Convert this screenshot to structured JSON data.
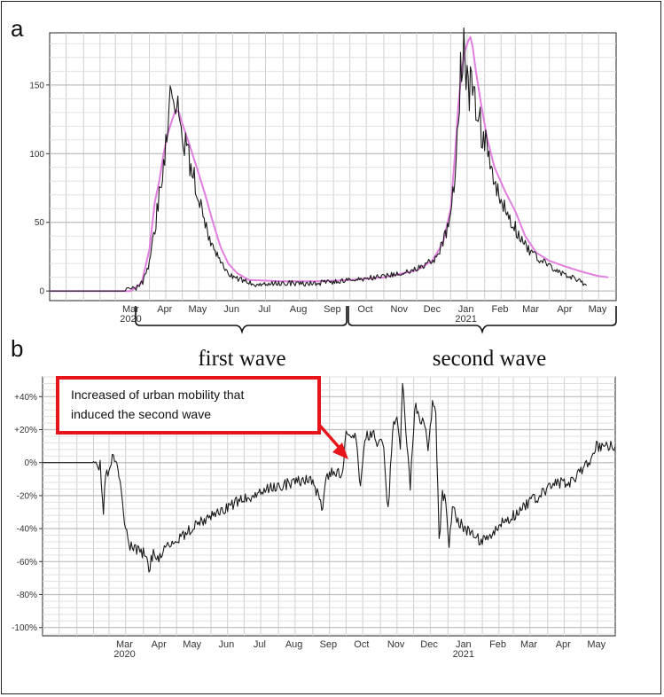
{
  "panels": {
    "a": {
      "letter": "a"
    },
    "b": {
      "letter": "b"
    }
  },
  "waves": {
    "first": "first wave",
    "second": "second wave"
  },
  "annotation": {
    "text_line1": "Increased of urban mobility that",
    "text_line2": "induced the second wave",
    "color": "#e8141c"
  },
  "colors": {
    "black_series": "#1a1a1a",
    "pink_series": "#e27ee0",
    "grid": "#cfcfcf"
  },
  "chart_data": [
    {
      "type": "line",
      "x_domain": [
        "2020-01-01",
        "2021-06-01"
      ],
      "x_axis_ticks": [
        {
          "month": "Mar",
          "year": "2020"
        },
        {
          "month": "Apr",
          "year": ""
        },
        {
          "month": "May",
          "year": ""
        },
        {
          "month": "Jun",
          "year": ""
        },
        {
          "month": "Jul",
          "year": ""
        },
        {
          "month": "Aug",
          "year": ""
        },
        {
          "month": "Sep",
          "year": ""
        },
        {
          "month": "Oct",
          "year": ""
        },
        {
          "month": "Nov",
          "year": ""
        },
        {
          "month": "Dec",
          "year": ""
        },
        {
          "month": "Jan",
          "year": "2021"
        },
        {
          "month": "Feb",
          "year": ""
        },
        {
          "month": "Mar",
          "year": ""
        },
        {
          "month": "Apr",
          "year": ""
        },
        {
          "month": "May",
          "year": ""
        }
      ],
      "y_ticks": [
        0,
        50,
        100,
        150
      ],
      "ylim": [
        -7,
        188
      ],
      "grid": true,
      "series": [
        {
          "color": "#1a1a1a",
          "points": [
            [
              "2020-01-01",
              0
            ],
            [
              "2020-03-10",
              0
            ],
            [
              "2020-03-20",
              2
            ],
            [
              "2020-03-26",
              6
            ],
            [
              "2020-04-01",
              20
            ],
            [
              "2020-04-06",
              45
            ],
            [
              "2020-04-10",
              70
            ],
            [
              "2020-04-13",
              88
            ],
            [
              "2020-04-16",
              110
            ],
            [
              "2020-04-19",
              138
            ],
            [
              "2020-04-21",
              145
            ],
            [
              "2020-04-23",
              128
            ],
            [
              "2020-04-26",
              140
            ],
            [
              "2020-04-28",
              132
            ],
            [
              "2020-05-02",
              110
            ],
            [
              "2020-05-05",
              105
            ],
            [
              "2020-05-09",
              90
            ],
            [
              "2020-05-13",
              78
            ],
            [
              "2020-05-18",
              60
            ],
            [
              "2020-05-23",
              45
            ],
            [
              "2020-05-29",
              32
            ],
            [
              "2020-06-03",
              25
            ],
            [
              "2020-06-10",
              15
            ],
            [
              "2020-06-17",
              10
            ],
            [
              "2020-06-24",
              8
            ],
            [
              "2020-07-05",
              5
            ],
            [
              "2020-07-20",
              5
            ],
            [
              "2020-08-05",
              6
            ],
            [
              "2020-08-20",
              5
            ],
            [
              "2020-09-05",
              6
            ],
            [
              "2020-09-20",
              7
            ],
            [
              "2020-10-05",
              8
            ],
            [
              "2020-10-25",
              10
            ],
            [
              "2020-11-10",
              12
            ],
            [
              "2020-11-25",
              14
            ],
            [
              "2020-12-10",
              20
            ],
            [
              "2020-12-20",
              25
            ],
            [
              "2020-12-28",
              42
            ],
            [
              "2021-01-02",
              62
            ],
            [
              "2021-01-06",
              95
            ],
            [
              "2021-01-08",
              130
            ],
            [
              "2021-01-10",
              165
            ],
            [
              "2021-01-12",
              178
            ],
            [
              "2021-01-14",
              172
            ],
            [
              "2021-01-16",
              160
            ],
            [
              "2021-01-18",
              148
            ],
            [
              "2021-01-21",
              150
            ],
            [
              "2021-01-24",
              130
            ],
            [
              "2021-01-27",
              125
            ],
            [
              "2021-02-01",
              108
            ],
            [
              "2021-02-06",
              92
            ],
            [
              "2021-02-11",
              75
            ],
            [
              "2021-02-17",
              62
            ],
            [
              "2021-02-25",
              52
            ],
            [
              "2021-03-05",
              40
            ],
            [
              "2021-03-15",
              28
            ],
            [
              "2021-03-25",
              22
            ],
            [
              "2021-04-05",
              16
            ],
            [
              "2021-04-15",
              12
            ],
            [
              "2021-04-25",
              9
            ],
            [
              "2021-05-01",
              6
            ],
            [
              "2021-05-05",
              4
            ]
          ]
        },
        {
          "color": "#e27ee0",
          "points": [
            [
              "2020-01-01",
              0
            ],
            [
              "2020-03-15",
              0
            ],
            [
              "2020-03-25",
              6
            ],
            [
              "2020-04-01",
              30
            ],
            [
              "2020-04-06",
              65
            ],
            [
              "2020-04-10",
              80
            ],
            [
              "2020-04-14",
              100
            ],
            [
              "2020-04-18",
              115
            ],
            [
              "2020-04-22",
              125
            ],
            [
              "2020-04-25",
              132
            ],
            [
              "2020-04-28",
              130
            ],
            [
              "2020-05-01",
              122
            ],
            [
              "2020-05-07",
              108
            ],
            [
              "2020-05-15",
              88
            ],
            [
              "2020-05-22",
              70
            ],
            [
              "2020-05-29",
              50
            ],
            [
              "2020-06-05",
              32
            ],
            [
              "2020-06-12",
              20
            ],
            [
              "2020-06-20",
              13
            ],
            [
              "2020-07-01",
              8
            ],
            [
              "2020-08-01",
              7
            ],
            [
              "2020-09-01",
              7
            ],
            [
              "2020-10-01",
              8
            ],
            [
              "2020-11-01",
              10
            ],
            [
              "2020-12-01",
              15
            ],
            [
              "2020-12-15",
              22
            ],
            [
              "2020-12-25",
              35
            ],
            [
              "2021-01-01",
              60
            ],
            [
              "2021-01-05",
              100
            ],
            [
              "2021-01-08",
              135
            ],
            [
              "2021-01-11",
              160
            ],
            [
              "2021-01-14",
              175
            ],
            [
              "2021-01-17",
              182
            ],
            [
              "2021-01-19",
              185
            ],
            [
              "2021-01-21",
              178
            ],
            [
              "2021-01-24",
              160
            ],
            [
              "2021-01-28",
              140
            ],
            [
              "2021-02-03",
              112
            ],
            [
              "2021-02-10",
              90
            ],
            [
              "2021-02-20",
              72
            ],
            [
              "2021-03-01",
              58
            ],
            [
              "2021-03-10",
              40
            ],
            [
              "2021-03-20",
              28
            ],
            [
              "2021-04-01",
              22
            ],
            [
              "2021-04-15",
              18
            ],
            [
              "2021-05-01",
              14
            ],
            [
              "2021-05-15",
              11
            ],
            [
              "2021-05-25",
              10
            ]
          ]
        }
      ]
    },
    {
      "type": "line",
      "x_domain": [
        "2020-01-01",
        "2021-06-01"
      ],
      "x_axis_ticks": [
        {
          "month": "Mar",
          "year": "2020"
        },
        {
          "month": "Apr",
          "year": ""
        },
        {
          "month": "May",
          "year": ""
        },
        {
          "month": "Jun",
          "year": ""
        },
        {
          "month": "Jul",
          "year": ""
        },
        {
          "month": "Aug",
          "year": ""
        },
        {
          "month": "Sep",
          "year": ""
        },
        {
          "month": "Oct",
          "year": ""
        },
        {
          "month": "Nov",
          "year": ""
        },
        {
          "month": "Dec",
          "year": ""
        },
        {
          "month": "Jan",
          "year": "2021"
        },
        {
          "month": "Feb",
          "year": ""
        },
        {
          "month": "Mar",
          "year": ""
        },
        {
          "month": "Apr",
          "year": ""
        },
        {
          "month": "May",
          "year": ""
        }
      ],
      "y_ticks": [
        {
          "value": 40,
          "label": "+40%"
        },
        {
          "value": 20,
          "label": "+20%"
        },
        {
          "value": 0,
          "label": "0%"
        },
        {
          "value": -20,
          "label": "-20%"
        },
        {
          "value": -40,
          "label": "-40%"
        },
        {
          "value": -60,
          "label": "-60%"
        },
        {
          "value": -80,
          "label": "-80%"
        },
        {
          "value": -100,
          "label": "-100%"
        }
      ],
      "ylim": [
        -105,
        52
      ],
      "grid": true,
      "series": [
        {
          "color": "#1a1a1a",
          "points": [
            [
              "2020-01-01",
              0
            ],
            [
              "2020-02-15",
              0
            ],
            [
              "2020-02-22",
              -2
            ],
            [
              "2020-02-25",
              -28
            ],
            [
              "2020-02-27",
              -5
            ],
            [
              "2020-03-01",
              -8
            ],
            [
              "2020-03-03",
              2
            ],
            [
              "2020-03-06",
              4
            ],
            [
              "2020-03-09",
              -2
            ],
            [
              "2020-03-12",
              -20
            ],
            [
              "2020-03-15",
              -38
            ],
            [
              "2020-03-19",
              -50
            ],
            [
              "2020-03-24",
              -53
            ],
            [
              "2020-04-01",
              -55
            ],
            [
              "2020-04-06",
              -64
            ],
            [
              "2020-04-10",
              -55
            ],
            [
              "2020-04-15",
              -57
            ],
            [
              "2020-04-20",
              -52
            ],
            [
              "2020-05-01",
              -47
            ],
            [
              "2020-05-15",
              -40
            ],
            [
              "2020-06-01",
              -32
            ],
            [
              "2020-06-15",
              -27
            ],
            [
              "2020-07-01",
              -22
            ],
            [
              "2020-07-15",
              -18
            ],
            [
              "2020-08-01",
              -14
            ],
            [
              "2020-08-15",
              -12
            ],
            [
              "2020-09-01",
              -10
            ],
            [
              "2020-09-10",
              -30
            ],
            [
              "2020-09-13",
              -8
            ],
            [
              "2020-09-20",
              -5
            ],
            [
              "2020-09-28",
              -8
            ],
            [
              "2020-10-01",
              18
            ],
            [
              "2020-10-10",
              15
            ],
            [
              "2020-10-14",
              -15
            ],
            [
              "2020-10-18",
              15
            ],
            [
              "2020-10-25",
              18
            ],
            [
              "2020-10-30",
              10
            ],
            [
              "2020-11-03",
              15
            ],
            [
              "2020-11-08",
              -30
            ],
            [
              "2020-11-12",
              20
            ],
            [
              "2020-11-16",
              30
            ],
            [
              "2020-11-19",
              10
            ],
            [
              "2020-11-21",
              48
            ],
            [
              "2020-11-24",
              20
            ],
            [
              "2020-11-28",
              -15
            ],
            [
              "2020-12-02",
              35
            ],
            [
              "2020-12-06",
              28
            ],
            [
              "2020-12-10",
              25
            ],
            [
              "2020-12-14",
              10
            ],
            [
              "2020-12-18",
              36
            ],
            [
              "2020-12-21",
              30
            ],
            [
              "2020-12-24",
              -48
            ],
            [
              "2020-12-27",
              -20
            ],
            [
              "2020-12-30",
              -22
            ],
            [
              "2021-01-02",
              -52
            ],
            [
              "2021-01-05",
              -25
            ],
            [
              "2021-01-10",
              -35
            ],
            [
              "2021-01-20",
              -42
            ],
            [
              "2021-02-01",
              -48
            ],
            [
              "2021-02-10",
              -44
            ],
            [
              "2021-02-20",
              -36
            ],
            [
              "2021-03-01",
              -32
            ],
            [
              "2021-03-15",
              -24
            ],
            [
              "2021-03-25",
              -20
            ],
            [
              "2021-04-01",
              -17
            ],
            [
              "2021-04-05",
              -12
            ],
            [
              "2021-04-22",
              -12
            ],
            [
              "2021-05-01",
              -5
            ],
            [
              "2021-05-08",
              0
            ],
            [
              "2021-05-15",
              10
            ],
            [
              "2021-06-01",
              10
            ]
          ]
        }
      ]
    }
  ]
}
